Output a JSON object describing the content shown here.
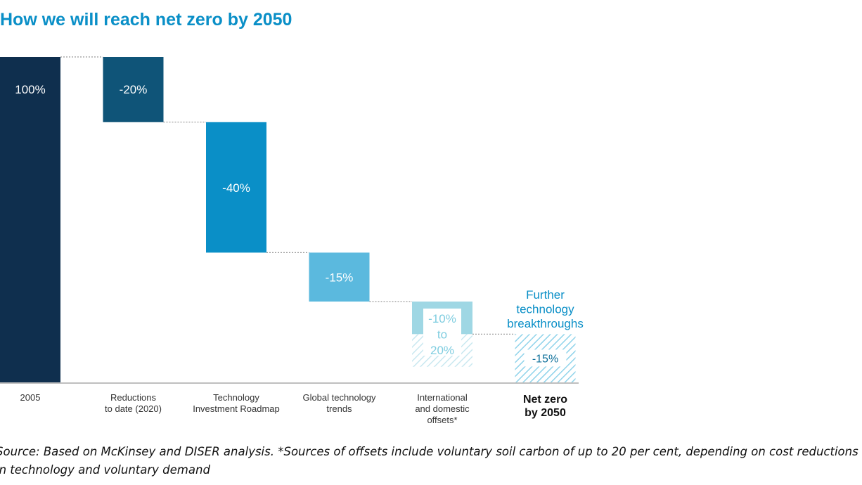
{
  "chart_data": {
    "type": "bar",
    "subtype": "waterfall",
    "title": "How we will reach net zero by 2050",
    "categories": [
      [
        "2005"
      ],
      [
        "Reductions",
        "to date (2020)"
      ],
      [
        "Technology",
        "Investment Roadmap"
      ],
      [
        "Global technology",
        "trends"
      ],
      [
        "International",
        "and domestic",
        "offsets*"
      ],
      [
        "Net zero",
        "by 2050"
      ]
    ],
    "bars": [
      {
        "start": 0,
        "end": 100,
        "label": [
          "100%"
        ],
        "color": "#0f2f4e",
        "style": "solid"
      },
      {
        "start": 100,
        "end": 80,
        "label": [
          "-20%"
        ],
        "color": "#0f5478",
        "style": "solid"
      },
      {
        "start": 80,
        "end": 40,
        "label": [
          "-40%"
        ],
        "color": "#0a8fc7",
        "style": "solid"
      },
      {
        "start": 40,
        "end": 25,
        "label": [
          "-15%"
        ],
        "color": "#5bb9de",
        "style": "solid"
      },
      {
        "start": 25,
        "end": 15,
        "range_end": 5,
        "label": [
          "-10%",
          "to",
          "20%"
        ],
        "color": "#9fd7e4",
        "style": "solid-then-hatched"
      },
      {
        "start": 15,
        "end": 0,
        "label": [
          "-15%"
        ],
        "color": "#8fd3ea",
        "style": "hatched"
      }
    ],
    "annotation": [
      "Further",
      "technology",
      "breakthroughs"
    ],
    "ylim": [
      0,
      100
    ],
    "grid": false,
    "legend": "none"
  },
  "source": "Source: Based on McKinsey and DISER analysis. *Sources of offsets include voluntary soil carbon of up to 20 per cent, depending on cost reductions in technology and voluntary demand"
}
